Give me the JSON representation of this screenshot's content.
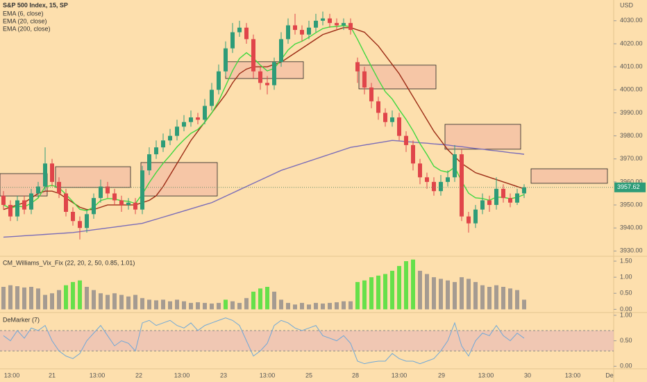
{
  "chart_data": {
    "type": "candlestick",
    "title": "S&P 500 Index, 15, SP",
    "currency": "USD",
    "up_color": "#2e9c78",
    "down_color": "#e0454a",
    "candles": {
      "open": [
        3954,
        3950,
        3945,
        3952,
        3948,
        3955,
        3958,
        3968,
        3960,
        3955,
        3947,
        3943,
        3940,
        3946,
        3953,
        3958,
        3955,
        3952,
        3950,
        3951,
        3948,
        3965,
        3972,
        3975,
        3978,
        3980,
        3984,
        3986,
        3988,
        3987,
        3993,
        4000,
        4008,
        4018,
        4025,
        4027,
        4022,
        4008,
        4003,
        4002,
        4012,
        4022,
        4028,
        4026,
        4024,
        4027,
        4030,
        4031,
        4029,
        4028,
        4029,
        4012,
        4008,
        4001,
        3995,
        3990,
        3986,
        3988,
        3980,
        3976,
        3968,
        3962,
        3960,
        3956,
        3960,
        3962,
        3972,
        3945,
        3942,
        3948,
        3952,
        3950,
        3957,
        3953,
        3951,
        3955
      ],
      "high": [
        3956,
        3952,
        3954,
        3954,
        3957,
        3960,
        3975,
        3970,
        3962,
        3957,
        3949,
        3945,
        3948,
        3955,
        3961,
        3960,
        3957,
        3954,
        3953,
        3953,
        3967,
        3975,
        3978,
        3981,
        3983,
        3987,
        3989,
        3991,
        3990,
        3996,
        4003,
        4011,
        4021,
        4029,
        4030,
        4029,
        4024,
        4010,
        4006,
        4014,
        4025,
        4031,
        4033,
        4028,
        4030,
        4033,
        4034,
        4033,
        4031,
        4031,
        4031,
        4014,
        4010,
        4003,
        3997,
        3992,
        3991,
        3990,
        3982,
        3978,
        3970,
        3964,
        3962,
        3963,
        3965,
        3976,
        3974,
        3947,
        3950,
        3955,
        3954,
        3962,
        3959,
        3955,
        3957,
        3959
      ],
      "low": [
        3948,
        3943,
        3943,
        3946,
        3946,
        3953,
        3956,
        3958,
        3953,
        3945,
        3941,
        3935,
        3938,
        3944,
        3951,
        3953,
        3950,
        3947,
        3948,
        3946,
        3946,
        3963,
        3970,
        3973,
        3976,
        3978,
        3982,
        3984,
        3985,
        3985,
        3991,
        3998,
        4006,
        4016,
        4023,
        4020,
        4005,
        4000,
        3998,
        4000,
        4010,
        4020,
        4024,
        4021,
        4022,
        4025,
        4028,
        4027,
        4026,
        4026,
        4024,
        4003,
        3998,
        3992,
        3987,
        3984,
        3984,
        3978,
        3973,
        3965,
        3959,
        3957,
        3954,
        3954,
        3958,
        3960,
        3943,
        3938,
        3940,
        3946,
        3947,
        3948,
        3951,
        3949,
        3950,
        3953
      ],
      "close": [
        3950,
        3945,
        3952,
        3948,
        3955,
        3958,
        3968,
        3960,
        3955,
        3947,
        3943,
        3940,
        3946,
        3953,
        3958,
        3955,
        3952,
        3950,
        3951,
        3948,
        3965,
        3972,
        3975,
        3978,
        3980,
        3984,
        3986,
        3988,
        3987,
        3993,
        4000,
        4008,
        4018,
        4025,
        4027,
        4022,
        4008,
        4003,
        4002,
        4012,
        4022,
        4028,
        4026,
        4024,
        4027,
        4030,
        4031,
        4029,
        4028,
        4029,
        4026,
        4008,
        4001,
        3995,
        3990,
        3986,
        3988,
        3980,
        3976,
        3968,
        3962,
        3960,
        3956,
        3960,
        3962,
        3972,
        3945,
        3942,
        3948,
        3952,
        3950,
        3957,
        3953,
        3951,
        3955,
        3957.62
      ]
    },
    "series": [
      {
        "name": "EMA (6, close)",
        "color": "#3fd83f",
        "values": [
          3950,
          3948.6,
          3949.5,
          3949.1,
          3950.8,
          3953,
          3957.9,
          3958.5,
          3957.5,
          3954.6,
          3951.4,
          3948.1,
          3947.5,
          3949.1,
          3951.9,
          3952.8,
          3952.6,
          3951.8,
          3951.6,
          3950.6,
          3954.7,
          3959.7,
          3964.1,
          3968.1,
          3971.5,
          3975.2,
          3978.3,
          3981.1,
          3982.8,
          3985.9,
          3989.9,
          3995.1,
          4001.7,
          4008.3,
          4013.6,
          4016.1,
          4013.8,
          4010.7,
          4008.2,
          4009.3,
          4013.1,
          4017.3,
          4019.9,
          4021.1,
          4022.8,
          4024.8,
          4026.6,
          4027.3,
          4027.5,
          4027.9,
          4027.4,
          4021.9,
          4015.9,
          4010.1,
          4004.4,
          3999.2,
          3996,
          3991.4,
          3987.1,
          3982.2,
          3976.6,
          3971.9,
          3966.8,
          3964.9,
          3964.2,
          3966.4,
          3960.3,
          3955.1,
          3953.1,
          3952.8,
          3952,
          3953.4,
          3953.3,
          3952.7,
          3953.3,
          3954.5
        ]
      },
      {
        "name": "EMA (20, close)",
        "color": "#9b2a14",
        "values": [
          3948,
          3949,
          3950,
          3951,
          3953,
          3955,
          3956,
          3956,
          3955,
          3953,
          3951,
          3949,
          3948,
          3948,
          3949,
          3950,
          3950,
          3950,
          3950,
          3950,
          3951,
          3952,
          3954,
          3958,
          3963,
          3968,
          3973,
          3978,
          3982,
          3986,
          3990,
          3994,
          3998,
          4003,
          4007,
          4009,
          4010,
          4010,
          4010,
          4011,
          4012,
          4014,
          4016,
          4018,
          4020,
          4022,
          4024,
          4025,
          4026,
          4027,
          4027,
          4026,
          4025,
          4022,
          4019,
          4015,
          4011,
          4007,
          4002,
          3997,
          3992,
          3987,
          3982,
          3978,
          3974,
          3971,
          3968,
          3966,
          3964,
          3963,
          3962,
          3961,
          3960,
          3959,
          3958,
          3957
        ]
      },
      {
        "name": "EMA (200, close)",
        "color": "#7a6cb8",
        "values": [
          3936,
          3936.2,
          3936.4,
          3936.6,
          3936.8,
          3937,
          3937.2,
          3937.4,
          3937.6,
          3937.8,
          3938,
          3938.4,
          3938.8,
          3939.2,
          3939.6,
          3940,
          3940.4,
          3940.8,
          3941.2,
          3941.6,
          3942,
          3942.9,
          3943.8,
          3944.7,
          3945.6,
          3946.5,
          3947.4,
          3948.3,
          3949.2,
          3950.1,
          3951,
          3952.4,
          3953.8,
          3955.2,
          3956.6,
          3958,
          3959.4,
          3960.8,
          3962.2,
          3963.6,
          3965,
          3966,
          3967,
          3968,
          3969,
          3970,
          3971,
          3972,
          3973,
          3974,
          3975,
          3975.5,
          3976,
          3976.5,
          3977,
          3977.5,
          3978,
          3977.8,
          3977.5,
          3977.3,
          3977,
          3976.8,
          3976.5,
          3976.3,
          3976,
          3975.6,
          3975.3,
          3974.9,
          3974.5,
          3974.2,
          3973.8,
          3973.5,
          3973.1,
          3972.7,
          3972.4,
          3972
        ]
      }
    ],
    "zone_color": "#f6c6a6",
    "zones": [
      {
        "start": -0.5,
        "end": 6.3,
        "top": 3963.6,
        "bottom": 3953.9
      },
      {
        "start": 7.5,
        "end": 18.3,
        "top": 3966.6,
        "bottom": 3957.6
      },
      {
        "start": 19.8,
        "end": 30.8,
        "top": 3968.4,
        "bottom": 3953.9
      },
      {
        "start": 32,
        "end": 43.2,
        "top": 4012.2,
        "bottom": 4004.9
      },
      {
        "start": 51.2,
        "end": 62.3,
        "top": 4010.7,
        "bottom": 4000.4
      },
      {
        "start": 63.6,
        "end": 74.5,
        "top": 3985,
        "bottom": 3974.2
      },
      {
        "start": 76,
        "end": 87,
        "top": 3965.7,
        "bottom": 3959.4
      }
    ],
    "ylim": [
      3928,
      4039
    ],
    "yticks": [
      {
        "value": 3930,
        "label": "3930.00"
      },
      {
        "value": 3940,
        "label": "3940.00"
      },
      {
        "value": 3950,
        "label": "3950.00"
      },
      {
        "value": 3960,
        "label": "3960.00"
      },
      {
        "value": 3970,
        "label": "3970.00"
      },
      {
        "value": 3980,
        "label": "3980.00"
      },
      {
        "value": 3990,
        "label": "3990.00"
      },
      {
        "value": 4000,
        "label": "4000.00"
      },
      {
        "value": 4010,
        "label": "4010.00"
      },
      {
        "value": 4020,
        "label": "4020.00"
      },
      {
        "value": 4030,
        "label": "4030.00"
      }
    ],
    "xticks": [
      {
        "value": 1.2,
        "label": "13:00"
      },
      {
        "value": 7,
        "label": "21"
      },
      {
        "value": 13.5,
        "label": "13:00"
      },
      {
        "value": 19.5,
        "label": "22"
      },
      {
        "value": 25.7,
        "label": "13:00"
      },
      {
        "value": 31.7,
        "label": "23"
      },
      {
        "value": 38,
        "label": "13:00"
      },
      {
        "value": 44,
        "label": "25"
      },
      {
        "value": 50.7,
        "label": "28"
      },
      {
        "value": 57,
        "label": "13:00"
      },
      {
        "value": 63.1,
        "label": "29"
      },
      {
        "value": 69.5,
        "label": "13:00"
      },
      {
        "value": 75.5,
        "label": "30"
      },
      {
        "value": 82,
        "label": "13:00"
      },
      {
        "value": 87.3,
        "label": "De"
      }
    ],
    "indicators": [
      {
        "type": "bar",
        "name": "CM_Williams_Vix_Fix (22, 20, 2, 50, 0.85, 1.01)",
        "color": "#a59b91",
        "highlight_color": "#66e04a",
        "values": [
          0.7,
          0.75,
          0.72,
          0.68,
          0.7,
          0.65,
          0.45,
          0.5,
          0.6,
          0.75,
          0.85,
          0.9,
          0.7,
          0.6,
          0.5,
          0.45,
          0.5,
          0.45,
          0.4,
          0.45,
          0.35,
          0.3,
          0.28,
          0.3,
          0.25,
          0.3,
          0.25,
          0.2,
          0.22,
          0.2,
          0.18,
          0.2,
          0.3,
          0.25,
          0.2,
          0.35,
          0.55,
          0.65,
          0.7,
          0.55,
          0.3,
          0.2,
          0.15,
          0.2,
          0.15,
          0.2,
          0.18,
          0.2,
          0.22,
          0.25,
          0.25,
          0.85,
          0.9,
          1.0,
          1.05,
          1.1,
          1.2,
          1.35,
          1.5,
          1.55,
          1.2,
          1.1,
          1.0,
          0.95,
          0.9,
          0.85,
          1.0,
          0.95,
          0.85,
          0.75,
          0.7,
          0.75,
          0.7,
          0.65,
          0.6,
          0.3
        ],
        "highlight": [
          false,
          false,
          false,
          false,
          false,
          false,
          false,
          false,
          false,
          true,
          true,
          true,
          false,
          false,
          false,
          false,
          false,
          false,
          false,
          false,
          false,
          false,
          false,
          false,
          false,
          false,
          false,
          false,
          false,
          false,
          false,
          false,
          true,
          false,
          false,
          false,
          true,
          true,
          true,
          false,
          false,
          false,
          false,
          false,
          false,
          false,
          false,
          false,
          false,
          false,
          false,
          true,
          true,
          true,
          true,
          true,
          true,
          true,
          true,
          true,
          false,
          false,
          false,
          false,
          false,
          false,
          false,
          false,
          false,
          false,
          false,
          false,
          false,
          false,
          false,
          false
        ],
        "ylim": [
          -0.1,
          1.63
        ],
        "yticks": [
          {
            "value": 1.5,
            "label": "1.50"
          },
          {
            "value": 1,
            "label": "1.00"
          },
          {
            "value": 0.5,
            "label": "0.50"
          },
          {
            "value": 0,
            "label": "0.00"
          }
        ]
      },
      {
        "type": "line",
        "name": "DeMarker (7)",
        "color": "#6fa8d8",
        "band": [
          0.3,
          0.7
        ],
        "band_color": "#e8b8b8",
        "values": [
          0.6,
          0.5,
          0.7,
          0.55,
          0.75,
          0.7,
          0.8,
          0.5,
          0.3,
          0.2,
          0.15,
          0.25,
          0.5,
          0.65,
          0.8,
          0.6,
          0.4,
          0.5,
          0.45,
          0.3,
          0.85,
          0.9,
          0.8,
          0.85,
          0.9,
          0.8,
          0.75,
          0.85,
          0.7,
          0.8,
          0.85,
          0.9,
          0.95,
          0.9,
          0.8,
          0.5,
          0.2,
          0.3,
          0.45,
          0.8,
          0.9,
          0.85,
          0.75,
          0.7,
          0.75,
          0.8,
          0.6,
          0.55,
          0.5,
          0.6,
          0.45,
          0.1,
          0.05,
          0.08,
          0.1,
          0.1,
          0.25,
          0.15,
          0.1,
          0.1,
          0.05,
          0.1,
          0.15,
          0.3,
          0.5,
          0.85,
          0.4,
          0.2,
          0.5,
          0.65,
          0.6,
          0.8,
          0.6,
          0.5,
          0.65,
          0.55
        ],
        "ylim": [
          -0.05,
          1.04
        ],
        "yticks": [
          {
            "value": 1,
            "label": "1.00"
          },
          {
            "value": 0.5,
            "label": "0.50"
          },
          {
            "value": 0,
            "label": "0.00"
          }
        ]
      }
    ]
  }
}
